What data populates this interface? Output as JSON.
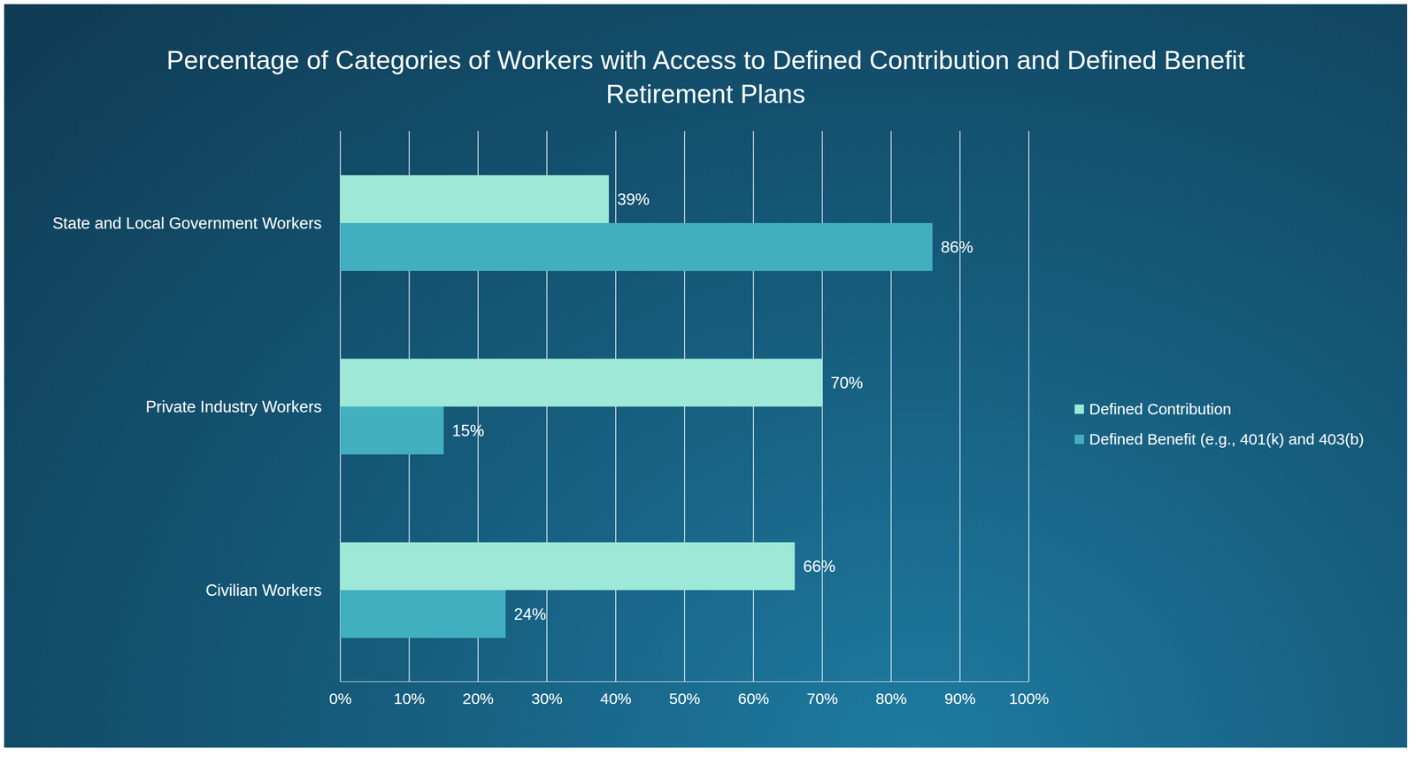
{
  "chart_data": {
    "type": "bar",
    "orientation": "horizontal",
    "title": "Percentage of Categories of Workers with Access to Defined Contribution and Defined Benefit Retirement Plans",
    "categories": [
      "State and Local Government Workers",
      "Private Industry Workers",
      "Civilian Workers"
    ],
    "series": [
      {
        "name": "Defined Contribution",
        "color": "#9de8d6",
        "values": [
          39,
          70,
          66
        ],
        "value_labels": [
          "39%",
          "70%",
          "66%"
        ]
      },
      {
        "name": "Defined Benefit (e.g., 401(k) and 403(b)",
        "color": "#41afc0",
        "values": [
          86,
          15,
          24
        ],
        "value_labels": [
          "86%",
          "15%",
          "24%"
        ]
      }
    ],
    "xlim": [
      0,
      100
    ],
    "xticks": [
      {
        "value": 0,
        "label": "0%"
      },
      {
        "value": 10,
        "label": "10%"
      },
      {
        "value": 20,
        "label": "20%"
      },
      {
        "value": 30,
        "label": "30%"
      },
      {
        "value": 40,
        "label": "40%"
      },
      {
        "value": 50,
        "label": "50%"
      },
      {
        "value": 60,
        "label": "60%"
      },
      {
        "value": 70,
        "label": "70%"
      },
      {
        "value": 80,
        "label": "80%"
      },
      {
        "value": 90,
        "label": "90%"
      },
      {
        "value": 100,
        "label": "100%"
      }
    ],
    "grid": true,
    "legend": "right",
    "data_labels": true
  }
}
